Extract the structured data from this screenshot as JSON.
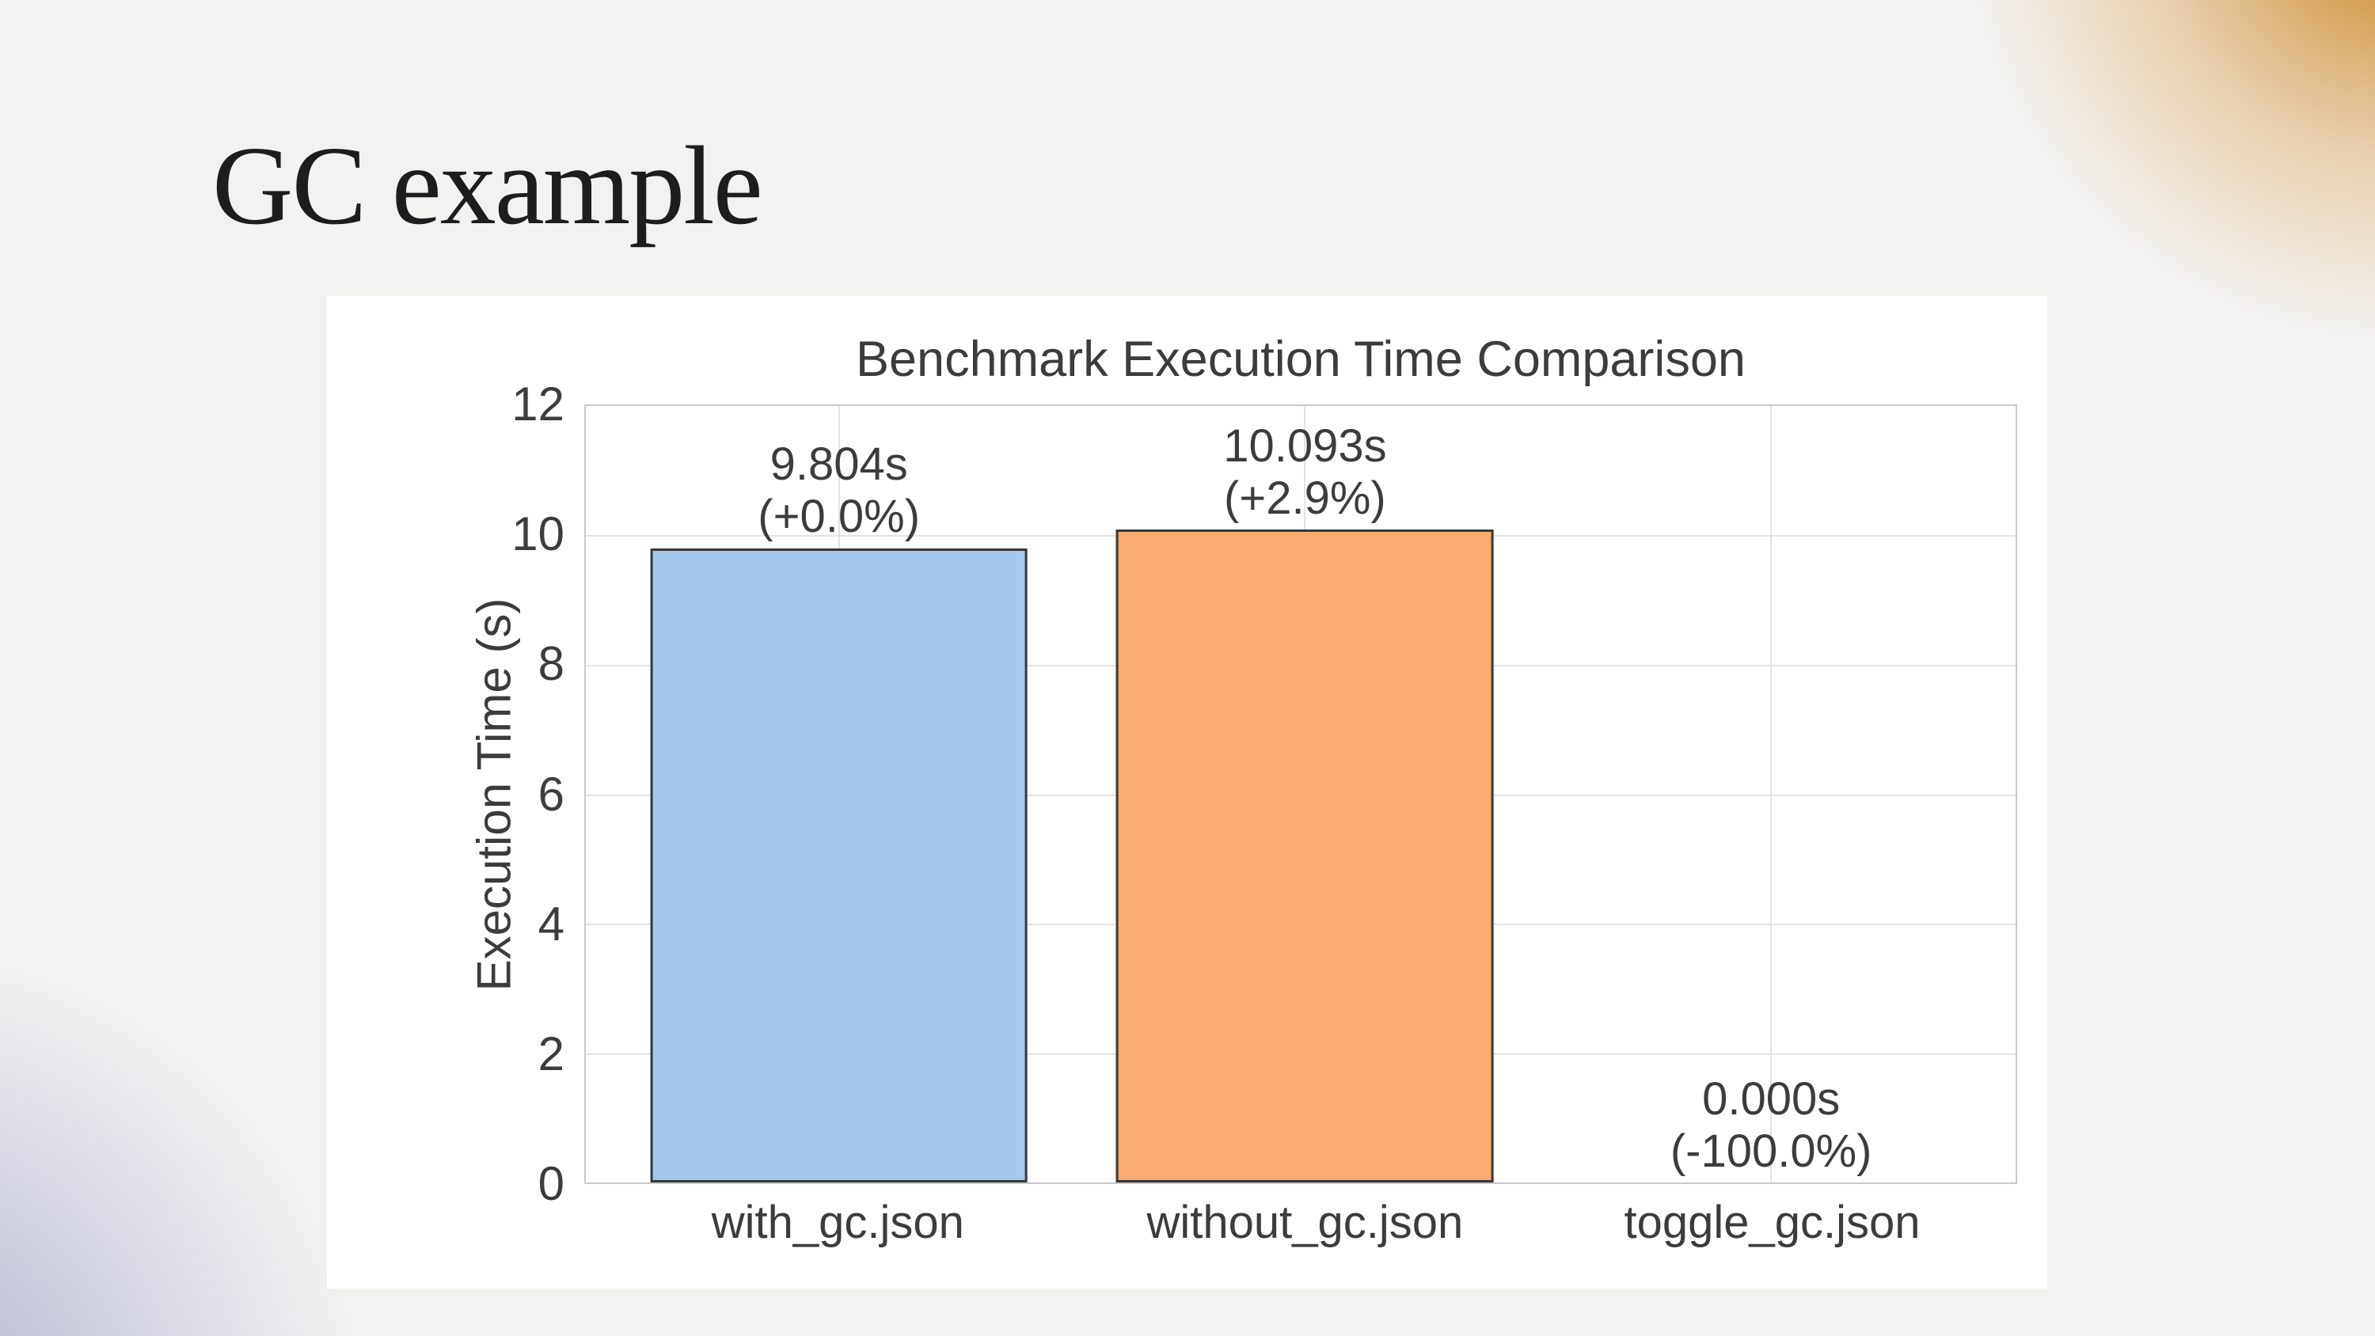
{
  "slide": {
    "title": "GC example"
  },
  "chart_data": {
    "type": "bar",
    "title": "Benchmark Execution Time Comparison",
    "ylabel": "Execution Time (s)",
    "categories": [
      "with_gc.json",
      "without_gc.json",
      "toggle_gc.json"
    ],
    "values": [
      9.804,
      10.093,
      0.0
    ],
    "bar_labels": [
      {
        "time": "9.804s",
        "delta": "(+0.0%)"
      },
      {
        "time": "10.093s",
        "delta": "(+2.9%)"
      },
      {
        "time": "0.000s",
        "delta": "(-100.0%)"
      }
    ],
    "bar_colors": [
      "#a3c9ee",
      "#f9ab71",
      "#a3c9ee"
    ],
    "bar_edge_color": "#383838",
    "ylim": [
      0,
      12
    ],
    "yticks": [
      0,
      2,
      4,
      6,
      8,
      10,
      12
    ],
    "grid": true,
    "legend_position": "none"
  },
  "colors": {
    "background": "#f2f2f1",
    "panel": "#ffffff",
    "accent_orange": "#c9862d",
    "accent_lavender": "#b0b3ce",
    "grid_line": "#e3e3e3",
    "spine": "#c9c9c9",
    "text": "#3c3c3c",
    "bar_edge": "#383838",
    "title_text": "#1d1d1d"
  }
}
